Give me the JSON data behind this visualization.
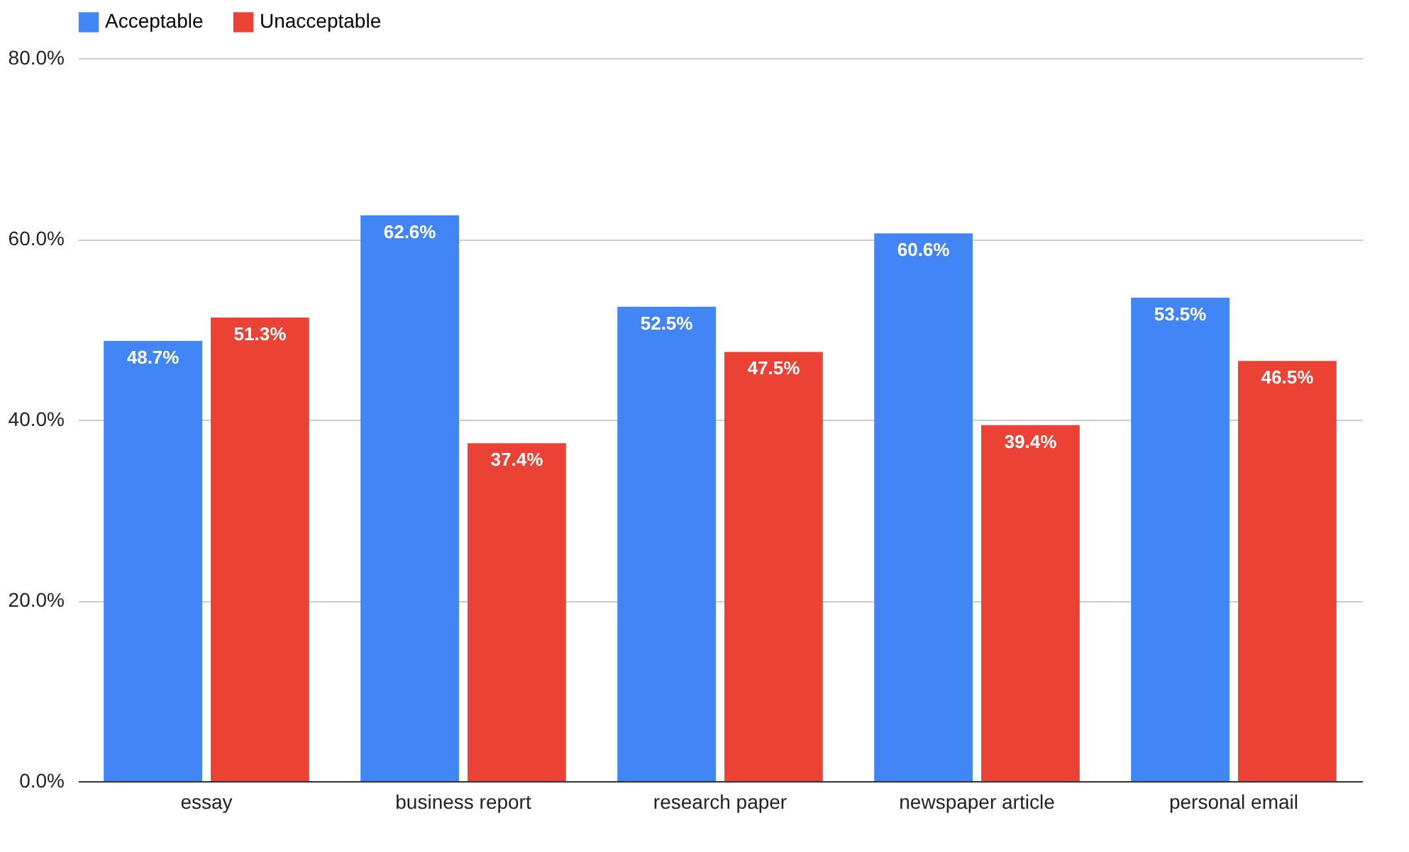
{
  "chart_data": {
    "type": "bar",
    "categories": [
      "essay",
      "business report",
      "research paper",
      "newspaper article",
      "personal email"
    ],
    "series": [
      {
        "name": "Acceptable",
        "color": "#4285f4",
        "values": [
          48.7,
          62.6,
          52.5,
          60.6,
          53.5
        ],
        "value_labels": [
          "48.7%",
          "62.6%",
          "52.5%",
          "60.6%",
          "53.5%"
        ]
      },
      {
        "name": "Unacceptable",
        "color": "#ea4335",
        "values": [
          51.3,
          37.4,
          47.5,
          39.4,
          46.5
        ],
        "value_labels": [
          "51.3%",
          "37.4%",
          "47.5%",
          "39.4%",
          "46.5%"
        ]
      }
    ],
    "ylim": [
      0,
      80
    ],
    "yticks": [
      {
        "value": 0,
        "label": "0.0%"
      },
      {
        "value": 20,
        "label": "20.0%"
      },
      {
        "value": 40,
        "label": "40.0%"
      },
      {
        "value": 60,
        "label": "60.0%"
      },
      {
        "value": 80,
        "label": "80.0%"
      }
    ],
    "grid": "y",
    "legend": "top"
  }
}
